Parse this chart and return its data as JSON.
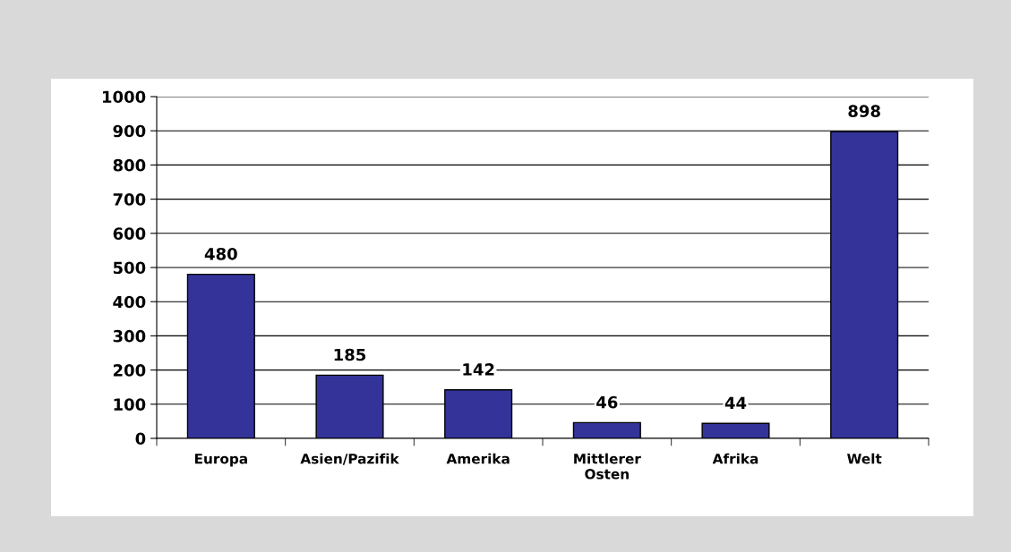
{
  "chart_data": {
    "type": "bar",
    "categories": [
      "Europa",
      "Asien/Pazifik",
      "Amerika",
      "Mittlerer\nOsten",
      "Afrika",
      "Welt"
    ],
    "values": [
      480,
      185,
      142,
      46,
      44,
      898
    ],
    "color": "#333399",
    "data_labels": true,
    "ylim": [
      0,
      1000
    ],
    "yticks": [
      0,
      100,
      200,
      300,
      400,
      500,
      600,
      700,
      800,
      900,
      1000
    ],
    "grid": "y",
    "legend": false
  }
}
